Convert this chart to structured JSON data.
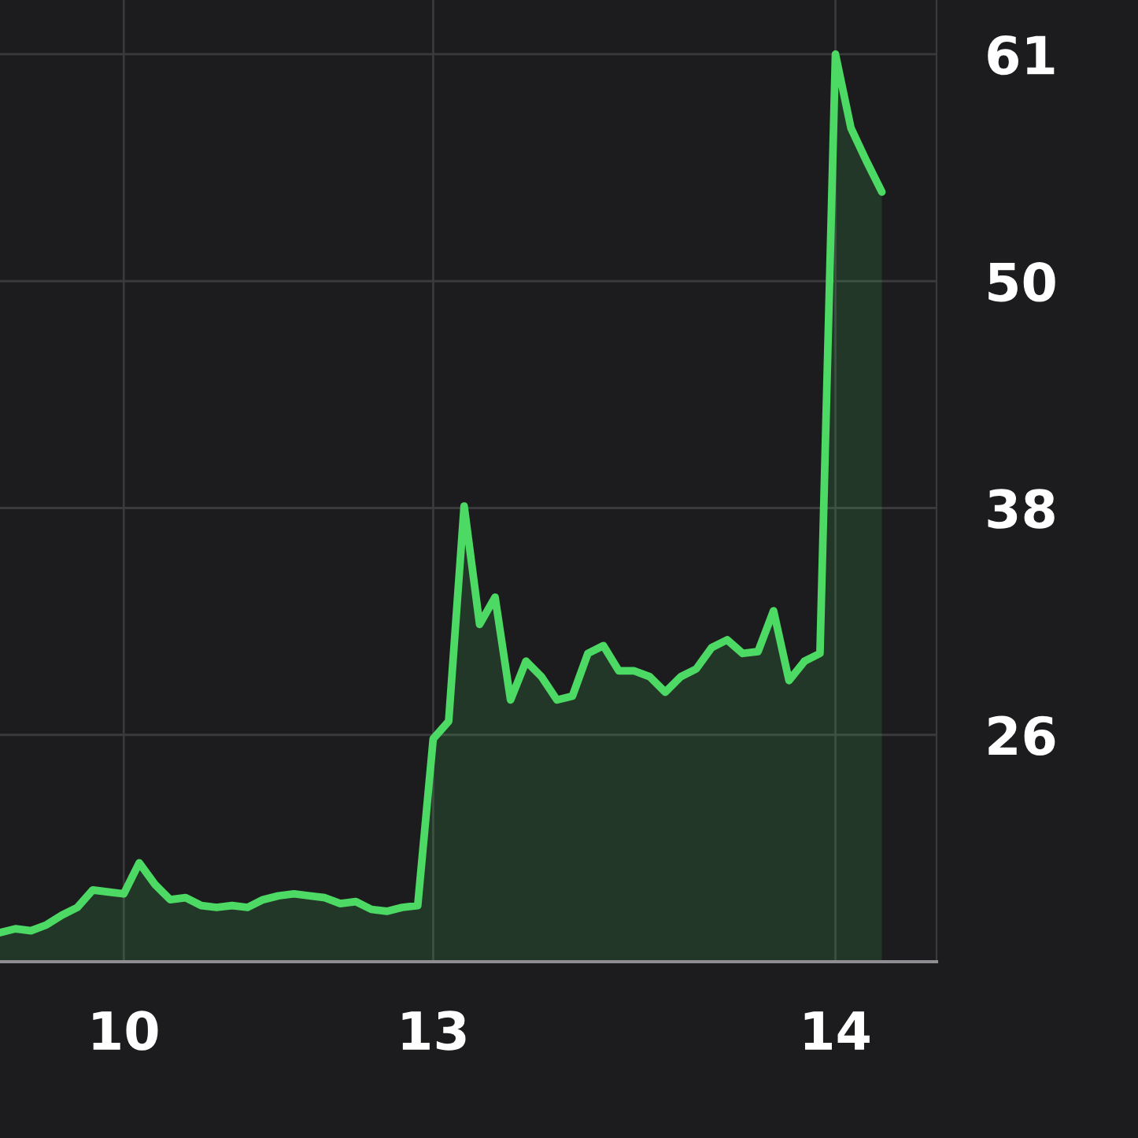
{
  "chart_data": {
    "type": "area",
    "color": "#4cd964",
    "categories": [
      null,
      null,
      null,
      null,
      null,
      null,
      null,
      null,
      "10",
      null,
      null,
      null,
      null,
      null,
      null,
      null,
      null,
      null,
      null,
      null,
      null,
      null,
      null,
      null,
      null,
      null,
      null,
      null,
      "13",
      null,
      null,
      null,
      null,
      null,
      null,
      null,
      null,
      null,
      null,
      null,
      null,
      null,
      null,
      null,
      null,
      null,
      null,
      null,
      null,
      null,
      null,
      null,
      null,
      null,
      "14",
      null,
      null,
      null
    ],
    "values": [
      16.0,
      16.2,
      16.1,
      16.4,
      16.9,
      17.3,
      18.2,
      18.1,
      18.0,
      19.6,
      18.5,
      17.7,
      17.8,
      17.4,
      17.3,
      17.4,
      17.3,
      17.7,
      17.9,
      18.0,
      17.9,
      17.8,
      17.5,
      17.6,
      17.2,
      17.1,
      17.3,
      17.4,
      26.0,
      26.9,
      38.0,
      31.9,
      33.3,
      28.0,
      30.0,
      29.2,
      28.0,
      28.2,
      30.4,
      30.8,
      29.5,
      29.5,
      29.2,
      28.4,
      29.2,
      29.6,
      30.7,
      31.1,
      30.4,
      30.5,
      32.6,
      29.0,
      30.0,
      30.4,
      61.3,
      57.5,
      55.8,
      54.2
    ],
    "ylim": [
      14.5,
      64.1
    ],
    "yticks": [
      {
        "value": 26.2,
        "label": "26"
      },
      {
        "value": 37.9,
        "label": "38"
      },
      {
        "value": 49.6,
        "label": "50"
      },
      {
        "value": 61.3,
        "label": "61"
      }
    ],
    "grid": true,
    "legend": false
  }
}
